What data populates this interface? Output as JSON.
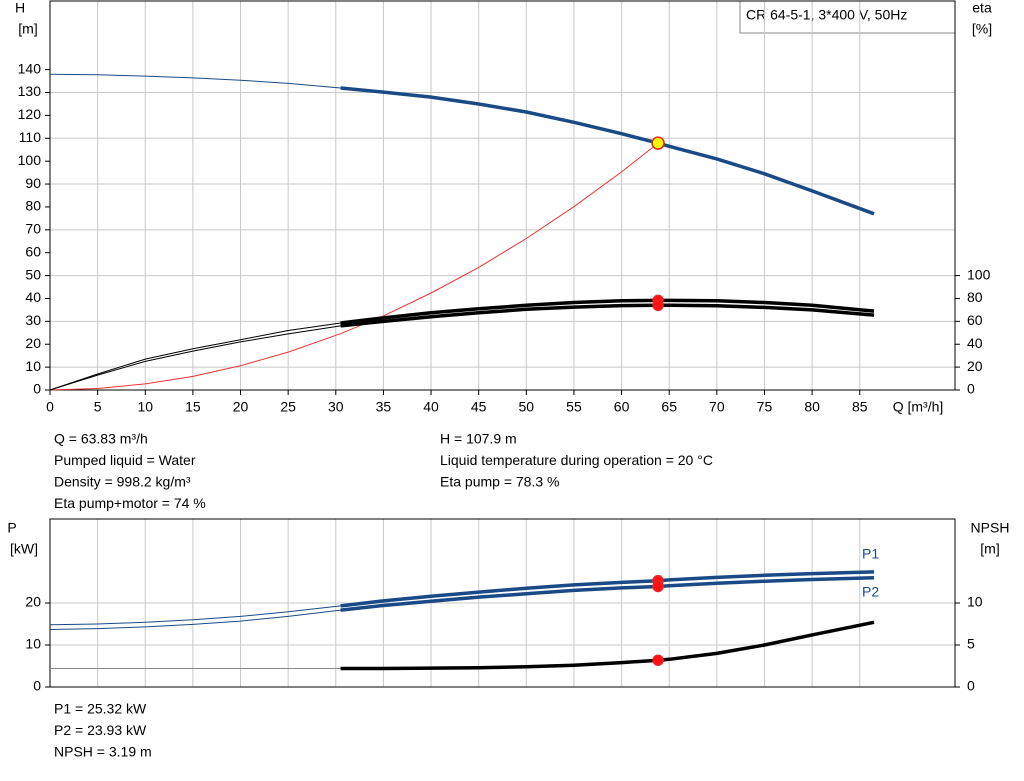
{
  "product": "CR 64-5-1, 3*400 V, 50Hz",
  "notes": {
    "operating": [
      "Q = 63.83 m³/h",
      "Pumped liquid = Water",
      "Density = 998.2 kg/m³",
      "Eta pump+motor = 74 %"
    ],
    "liquid": [
      "H = 107.9 m",
      "Liquid temperature during operation = 20 °C",
      "Eta pump = 78.3 %"
    ],
    "power": [
      "P1 = 25.32 kW",
      "P2 = 23.93 kW",
      "NPSH = 3.19 m"
    ]
  },
  "chart_data": [
    {
      "type": "line",
      "xlabel": "Q [m³/h]",
      "ylabel": "H",
      "yunit": "[m]",
      "y2label": "eta",
      "y2unit": "[%]",
      "x": [
        0,
        5,
        10,
        15,
        20,
        25,
        30.5,
        35,
        40,
        45,
        50,
        55,
        60,
        63.83,
        65,
        70,
        75,
        80,
        86.5
      ],
      "xlim": [
        0,
        95
      ],
      "xticks": [
        0,
        5,
        10,
        15,
        20,
        25,
        30,
        35,
        40,
        45,
        50,
        55,
        60,
        65,
        70,
        75,
        80,
        85
      ],
      "ylim": [
        0,
        170
      ],
      "yticks": [
        0,
        10,
        20,
        30,
        40,
        50,
        60,
        70,
        80,
        90,
        100,
        110,
        120,
        130,
        140
      ],
      "y2lim": [
        0,
        340
      ],
      "y2ticks": [
        0,
        20,
        40,
        60,
        80,
        100
      ],
      "grid": true,
      "thick_range": [
        30.5,
        86.5
      ],
      "series": [
        {
          "color": "#1a4a86",
          "thick": true,
          "axis": "y",
          "values": [
            138,
            137.8,
            137.2,
            136.4,
            135.4,
            134,
            132,
            130.2,
            128,
            125,
            121.5,
            117,
            112,
            107.9,
            106.5,
            101,
            94.5,
            87,
            77
          ]
        },
        {
          "color": "#ee3333",
          "thick": false,
          "axis": "y",
          "values": [
            0,
            0.66,
            2.65,
            5.96,
            10.6,
            16.55,
            24.6,
            32.4,
            42.4,
            53.6,
            66.2,
            80.1,
            95.3,
            107.9,
            null,
            null,
            null,
            null,
            null
          ]
        },
        {
          "color": "#000000",
          "thick": true,
          "axis": "y2",
          "values": [
            0,
            14,
            27,
            36,
            44,
            52,
            58.6,
            63,
            67.5,
            71,
            74,
            76.5,
            78,
            78.3,
            78.3,
            78,
            76.5,
            74,
            69
          ]
        },
        {
          "color": "#000000",
          "thick": true,
          "axis": "y2",
          "values": [
            0,
            13,
            25,
            34,
            42,
            49,
            56,
            60,
            64,
            67.5,
            70.5,
            72.5,
            73.8,
            74,
            74,
            73.7,
            72.2,
            70,
            65.5
          ]
        }
      ],
      "points": [
        {
          "x": 63.83,
          "y": 107.9,
          "axis": "y",
          "color": "#ffff00",
          "edge": "#ee2222"
        },
        {
          "x": 63.83,
          "y": 78.3,
          "axis": "y2",
          "color": "#ff1111",
          "edge": "#ee2222"
        },
        {
          "x": 63.83,
          "y": 74,
          "axis": "y2",
          "color": "#ff1111",
          "edge": "#ee2222"
        }
      ]
    },
    {
      "type": "line",
      "ylabel": "P",
      "yunit": "[kW]",
      "y2label": "NPSH",
      "y2unit": "[m]",
      "x": [
        0,
        5,
        10,
        15,
        20,
        25,
        30.5,
        35,
        40,
        45,
        50,
        55,
        60,
        63.83,
        65,
        70,
        75,
        80,
        86.5
      ],
      "xlim": [
        0,
        95
      ],
      "ylim": [
        0,
        40
      ],
      "yticks": [
        0,
        10,
        20
      ],
      "y2lim": [
        0,
        20
      ],
      "y2ticks": [
        0,
        5,
        10
      ],
      "grid": true,
      "thick_range": [
        30.5,
        86.5
      ],
      "series": [
        {
          "name": "P1",
          "color": "#1a4a86",
          "thick": true,
          "axis": "y",
          "values": [
            14.8,
            15,
            15.4,
            16,
            16.8,
            17.9,
            19.3,
            20.5,
            21.6,
            22.6,
            23.5,
            24.3,
            24.9,
            25.32,
            25.5,
            26.1,
            26.6,
            27,
            27.4
          ]
        },
        {
          "name": "P2",
          "color": "#1a4a86",
          "thick": true,
          "axis": "y",
          "values": [
            13.7,
            13.9,
            14.3,
            14.9,
            15.7,
            16.8,
            18.3,
            19.4,
            20.4,
            21.4,
            22.2,
            23,
            23.6,
            23.93,
            24.1,
            24.7,
            25.2,
            25.6,
            26
          ]
        },
        {
          "color": "#000000",
          "thin_color": "#888888",
          "thick": true,
          "axis": "y2",
          "values": [
            2.2,
            2.2,
            2.2,
            2.2,
            2.2,
            2.2,
            2.2,
            2.2,
            2.25,
            2.3,
            2.4,
            2.6,
            2.9,
            3.19,
            3.3,
            4,
            5,
            6.2,
            7.7
          ]
        }
      ],
      "points": [
        {
          "x": 63.83,
          "y": 25.32,
          "axis": "y",
          "color": "#ff1111",
          "edge": "#ee2222"
        },
        {
          "x": 63.83,
          "y": 23.93,
          "axis": "y",
          "color": "#ff1111",
          "edge": "#ee2222"
        },
        {
          "x": 63.83,
          "y": 3.19,
          "axis": "y2",
          "color": "#ff1111",
          "edge": "#ee2222"
        }
      ]
    }
  ]
}
